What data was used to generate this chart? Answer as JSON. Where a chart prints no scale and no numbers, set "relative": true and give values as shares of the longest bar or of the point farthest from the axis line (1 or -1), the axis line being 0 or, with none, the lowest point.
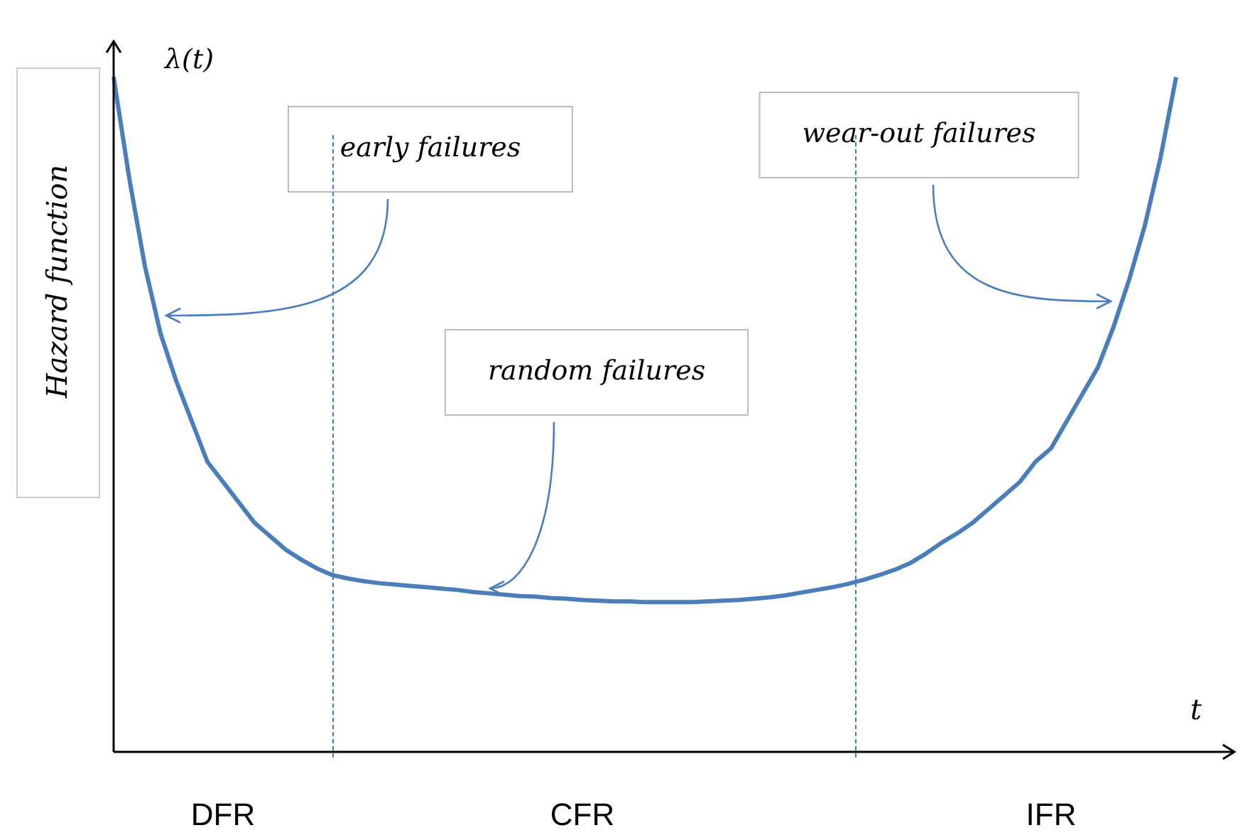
{
  "chart_data": {
    "type": "line",
    "relative": true,
    "grid": false,
    "legend": false,
    "marker": "none",
    "line_style": "solid",
    "xlabel": "t",
    "ylabel": "Hazard function",
    "categories": [
      null,
      null,
      null,
      null,
      null,
      null,
      null,
      "DFR",
      null,
      null,
      null,
      null,
      null,
      null,
      null,
      null,
      null,
      null,
      null,
      null,
      null,
      null,
      null,
      null,
      null,
      null,
      null,
      null,
      null,
      null,
      "CFR",
      null,
      null,
      null,
      null,
      null,
      null,
      null,
      null,
      null,
      null,
      null,
      null,
      null,
      null,
      null,
      null,
      null,
      null,
      null,
      null,
      null,
      null,
      null,
      null,
      null,
      null,
      null,
      null,
      null,
      "IFR",
      null,
      null,
      null,
      null,
      null,
      null,
      null,
      null
    ],
    "series": [
      {
        "color": "#4a7ebb",
        "values": [
          1.0,
          0.85,
          0.72,
          0.62,
          0.55,
          0.49,
          0.43,
          0.4,
          0.37,
          0.34,
          0.32,
          0.3,
          0.285,
          0.272,
          0.262,
          0.257,
          0.253,
          0.25,
          0.248,
          0.246,
          0.244,
          0.242,
          0.24,
          0.237,
          0.235,
          0.233,
          0.231,
          0.23,
          0.228,
          0.227,
          0.225,
          0.224,
          0.223,
          0.223,
          0.222,
          0.222,
          0.222,
          0.222,
          0.223,
          0.224,
          0.225,
          0.227,
          0.229,
          0.232,
          0.236,
          0.24,
          0.244,
          0.249,
          0.255,
          0.262,
          0.27,
          0.28,
          0.294,
          0.31,
          0.324,
          0.34,
          0.36,
          0.38,
          0.4,
          0.43,
          0.45,
          0.49,
          0.53,
          0.57,
          0.63,
          0.7,
          0.78,
          0.88,
          1.0
        ]
      }
    ],
    "annotations": [
      "λ(t)",
      "early failures",
      "random failures",
      "wear-out failures"
    ]
  }
}
